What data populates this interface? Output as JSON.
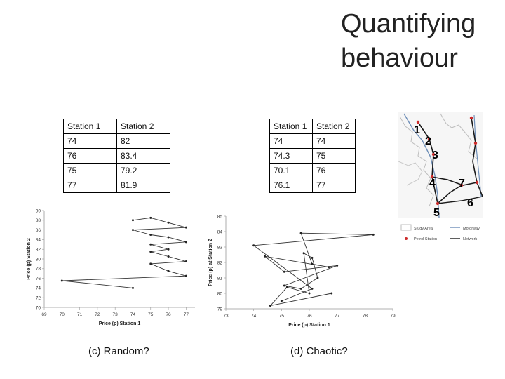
{
  "page": {
    "title": "Quantifying behaviour"
  },
  "tables": [
    {
      "headers": [
        "Station 1",
        "Station 2"
      ],
      "rows": [
        [
          "74",
          "82"
        ],
        [
          "76",
          "83.4"
        ],
        [
          "75",
          "79.2"
        ],
        [
          "77",
          "81.9"
        ]
      ]
    },
    {
      "headers": [
        "Station 1",
        "Station 2"
      ],
      "rows": [
        [
          "74",
          "74"
        ],
        [
          "74.3",
          "75"
        ],
        [
          "70.1",
          "76"
        ],
        [
          "76.1",
          "77"
        ]
      ]
    }
  ],
  "map": {
    "station_labels": [
      "1",
      "2",
      "3",
      "4",
      "7",
      "6",
      "5"
    ],
    "legend": [
      "Study Area",
      "Motorway",
      "Petrol Station",
      "Network"
    ],
    "colors": {
      "network": "#1a1a1a",
      "motorway": "#6f8fb8",
      "petrol_station": "#cc2b2b",
      "study_area": "#bdbdbd"
    }
  },
  "chart_data": [
    {
      "type": "line",
      "caption": "(c) Random?",
      "xlabel": "Price (p) Station 1",
      "ylabel": "Price (p) Station 2",
      "xlim": [
        69,
        77.5
      ],
      "ylim": [
        70,
        90
      ],
      "xticks": [
        "69",
        "70",
        "71",
        "72",
        "73",
        "74",
        "75",
        "76",
        "77"
      ],
      "yticks": [
        "70",
        "72",
        "74",
        "76",
        "78",
        "80",
        "82",
        "84",
        "86",
        "88",
        "90"
      ],
      "x": [
        74,
        70,
        77,
        76,
        75,
        77,
        76,
        75,
        76,
        75,
        77,
        76,
        75,
        74,
        77,
        76,
        75,
        74
      ],
      "y": [
        74,
        75.5,
        76.5,
        77.5,
        79,
        79.5,
        80.5,
        81.5,
        82,
        83,
        83.5,
        84.5,
        85,
        86,
        86.5,
        87.5,
        88.5,
        88
      ]
    },
    {
      "type": "line",
      "caption": "(d) Chaotic?",
      "xlabel": "Price (p) Station 1",
      "ylabel": "Price (p) at Station 2",
      "xlim": [
        73,
        79
      ],
      "ylim": [
        79,
        85
      ],
      "xticks": [
        "73",
        "74",
        "75",
        "76",
        "77",
        "78",
        "79"
      ],
      "yticks": [
        "79",
        "80",
        "81",
        "82",
        "83",
        "84",
        "85"
      ],
      "x": [
        75,
        76.1,
        74,
        78.3,
        75.7,
        76.1,
        76.7,
        74.4,
        75.1,
        77.0,
        75.1,
        75.7,
        76.3,
        76.1,
        75.8,
        76.0,
        75.2,
        74.6,
        76.8
      ],
      "y": [
        79.5,
        80.3,
        83.1,
        83.8,
        83.9,
        81.9,
        81.7,
        82.4,
        81.4,
        81.8,
        80.5,
        80.3,
        81.0,
        82.3,
        82.6,
        80.0,
        80.4,
        79.2,
        80.0
      ]
    }
  ]
}
